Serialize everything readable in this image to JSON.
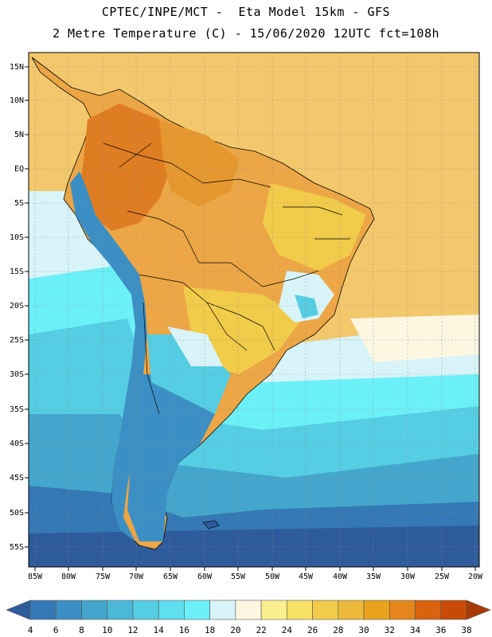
{
  "title_line1": "CPTEC/INPE/MCT -  Eta Model 15km - GFS",
  "title_line2": "2 Metre Temperature (C) - 15/06/2020 12UTC fct=108h",
  "lat_labels": [
    "15N",
    "10N",
    "5N",
    "EQ",
    "5S",
    "10S",
    "15S",
    "20S",
    "25S",
    "30S",
    "35S",
    "40S",
    "45S",
    "50S",
    "55S"
  ],
  "lon_labels": [
    "85W",
    "80W",
    "75W",
    "70W",
    "65W",
    "60W",
    "55W",
    "50W",
    "45W",
    "40W",
    "35W",
    "30W",
    "25W",
    "20W"
  ],
  "colorbar": {
    "labels": [
      "4",
      "6",
      "8",
      "10",
      "12",
      "14",
      "16",
      "18",
      "20",
      "22",
      "24",
      "26",
      "28",
      "30",
      "32",
      "34",
      "36",
      "38"
    ],
    "colors": [
      "#2e5b9c",
      "#3479b6",
      "#3c8fc4",
      "#44a6cc",
      "#4cb8d8",
      "#55cde2",
      "#5fdff0",
      "#6cf0f8",
      "#d8f4f8",
      "#fdf7e2",
      "#fbee8c",
      "#f8e066",
      "#f1cb4a",
      "#ecb83a",
      "#e9a21c",
      "#e4861c",
      "#d9620e",
      "#c84a06",
      "#a83a06"
    ]
  },
  "map_colors": {
    "ocean_far": "#2e5b9c",
    "ocean_mid": "#3c8fc4",
    "ocean_light": "#55cde2",
    "ocean_pale": "#d8f4f8",
    "warm_ocean": "#f5d27e",
    "land_warm": "#eca646",
    "land_hot": "#df7d22",
    "andes_cold": "#44a6cc",
    "border": "#000000"
  }
}
